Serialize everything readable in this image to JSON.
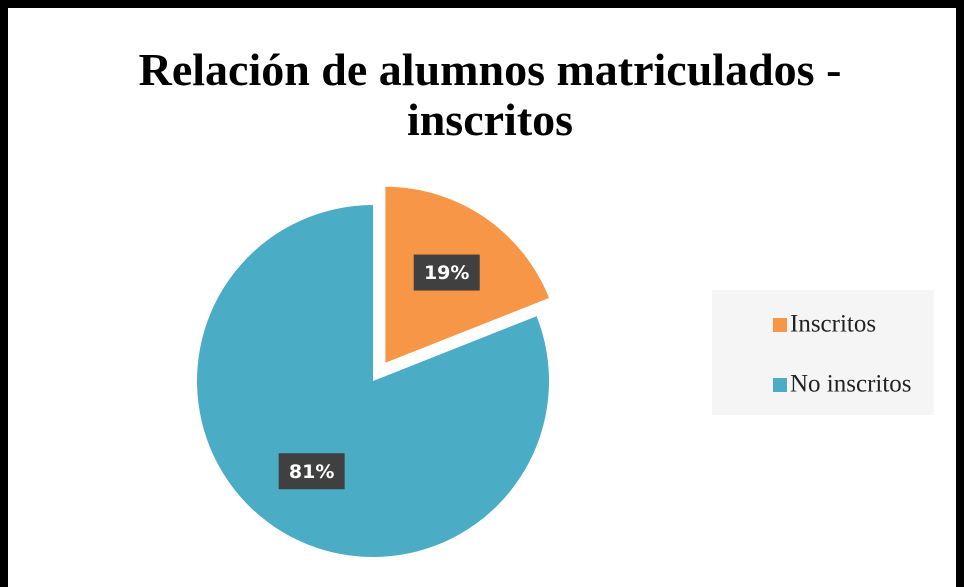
{
  "chart_data": {
    "type": "pie",
    "title": "Relación de alumnos matriculados - inscritos",
    "categories": [
      "Inscritos",
      "No inscritos"
    ],
    "values": [
      19,
      81
    ],
    "value_labels": [
      "19%",
      "81%"
    ],
    "colors": [
      "#f79646",
      "#4bacc6"
    ],
    "exploded": [
      true,
      false
    ],
    "legend": "right"
  }
}
